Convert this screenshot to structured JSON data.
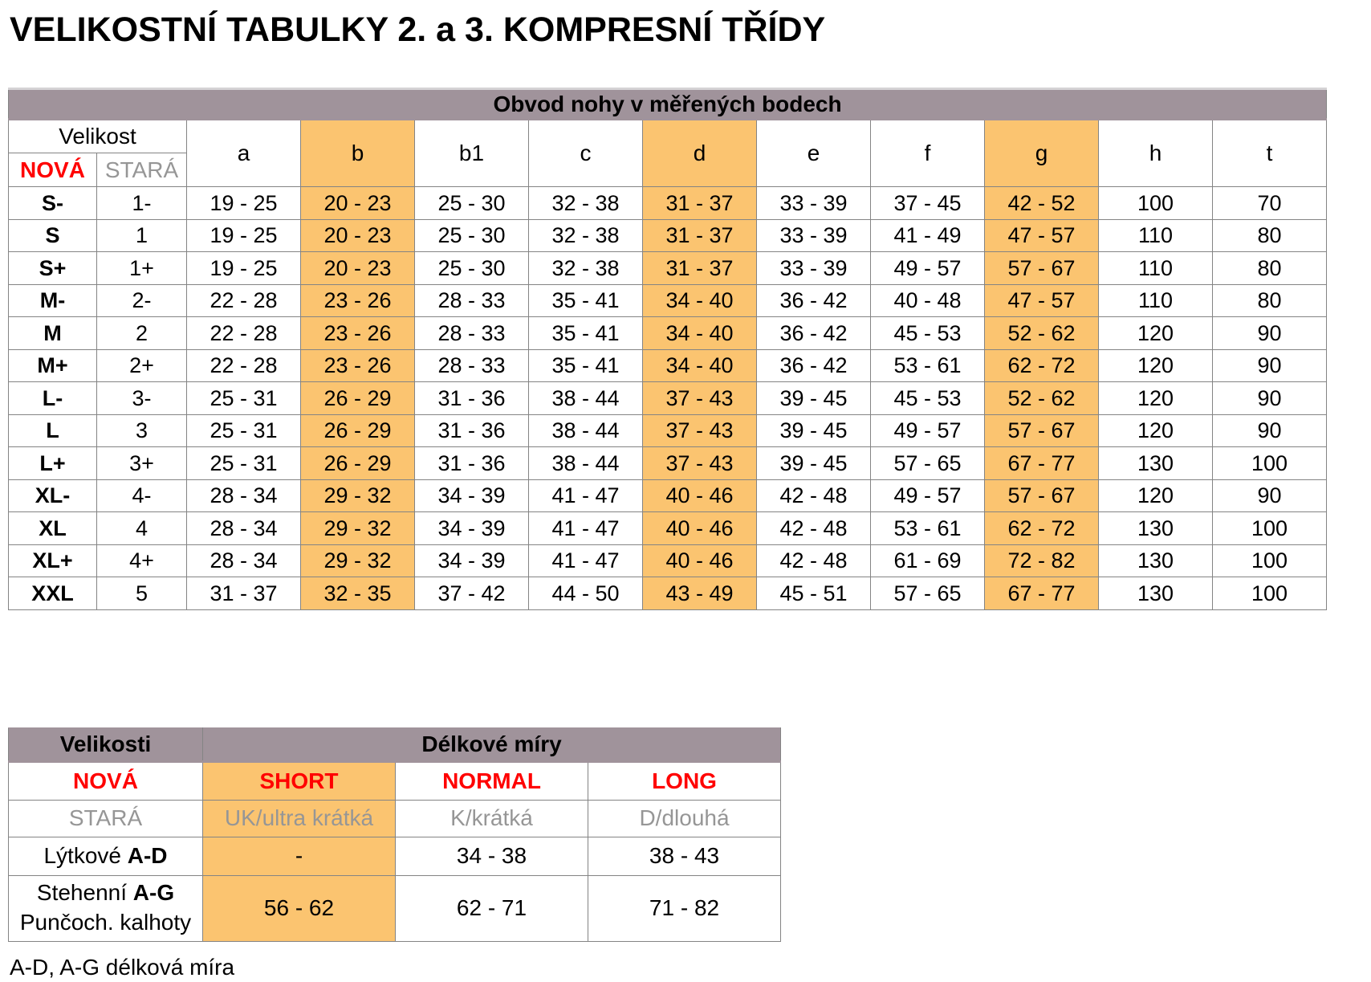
{
  "title": "VELIKOSTNÍ TABULKY 2. a 3. KOMPRESNÍ TŘÍDY",
  "colors": {
    "header_band": "#A0939B",
    "highlight_orange": "#FBC470",
    "accent_red": "#FF0000",
    "muted_gray_text": "#969696",
    "grid_border": "#848484"
  },
  "main_table": {
    "band_title": "Obvod nohy v měřených bodech",
    "size_header": "Velikost",
    "new_label": "NOVÁ",
    "old_label": "STARÁ",
    "columns": [
      "a",
      "b",
      "b1",
      "c",
      "d",
      "e",
      "f",
      "g",
      "h",
      "t"
    ],
    "highlight_columns": [
      "b",
      "d",
      "g"
    ],
    "rows": [
      {
        "new": "S-",
        "old": "1-",
        "values": [
          "19 - 25",
          "20 - 23",
          "25 - 30",
          "32 - 38",
          "31 - 37",
          "33 - 39",
          "37 - 45",
          "42 - 52",
          "100",
          "70"
        ]
      },
      {
        "new": "S",
        "old": "1",
        "values": [
          "19 - 25",
          "20 - 23",
          "25 - 30",
          "32 - 38",
          "31 - 37",
          "33 - 39",
          "41 - 49",
          "47 - 57",
          "110",
          "80"
        ]
      },
      {
        "new": "S+",
        "old": "1+",
        "values": [
          "19 - 25",
          "20 - 23",
          "25 - 30",
          "32 - 38",
          "31 - 37",
          "33 - 39",
          "49 - 57",
          "57 - 67",
          "110",
          "80"
        ]
      },
      {
        "new": "M-",
        "old": "2-",
        "values": [
          "22 - 28",
          "23 - 26",
          "28 - 33",
          "35 - 41",
          "34 - 40",
          "36 - 42",
          "40 - 48",
          "47 - 57",
          "110",
          "80"
        ]
      },
      {
        "new": "M",
        "old": "2",
        "values": [
          "22 - 28",
          "23 - 26",
          "28 - 33",
          "35 - 41",
          "34 - 40",
          "36 - 42",
          "45 - 53",
          "52 - 62",
          "120",
          "90"
        ]
      },
      {
        "new": "M+",
        "old": "2+",
        "values": [
          "22 - 28",
          "23 - 26",
          "28 - 33",
          "35 - 41",
          "34 - 40",
          "36 - 42",
          "53 - 61",
          "62 - 72",
          "120",
          "90"
        ]
      },
      {
        "new": "L-",
        "old": "3-",
        "values": [
          "25 - 31",
          "26 - 29",
          "31 - 36",
          "38 - 44",
          "37 - 43",
          "39 - 45",
          "45 - 53",
          "52 - 62",
          "120",
          "90"
        ]
      },
      {
        "new": "L",
        "old": "3",
        "values": [
          "25 - 31",
          "26 - 29",
          "31 - 36",
          "38 - 44",
          "37 - 43",
          "39 - 45",
          "49 - 57",
          "57 - 67",
          "120",
          "90"
        ]
      },
      {
        "new": "L+",
        "old": "3+",
        "values": [
          "25 - 31",
          "26 - 29",
          "31 - 36",
          "38 - 44",
          "37 - 43",
          "39 - 45",
          "57 - 65",
          "67 - 77",
          "130",
          "100"
        ]
      },
      {
        "new": "XL-",
        "old": "4-",
        "values": [
          "28 - 34",
          "29 - 32",
          "34 - 39",
          "41 - 47",
          "40 - 46",
          "42 - 48",
          "49 - 57",
          "57 - 67",
          "120",
          "90"
        ]
      },
      {
        "new": "XL",
        "old": "4",
        "values": [
          "28 - 34",
          "29 - 32",
          "34 - 39",
          "41 - 47",
          "40 - 46",
          "42 - 48",
          "53 - 61",
          "62 - 72",
          "130",
          "100"
        ]
      },
      {
        "new": "XL+",
        "old": "4+",
        "values": [
          "28 - 34",
          "29 - 32",
          "34 - 39",
          "41 - 47",
          "40 - 46",
          "42 - 48",
          "61 - 69",
          "72 - 82",
          "130",
          "100"
        ]
      },
      {
        "new": "XXL",
        "old": "5",
        "values": [
          "31 - 37",
          "32 - 35",
          "37 - 42",
          "44 - 50",
          "43 - 49",
          "45 - 51",
          "57 - 65",
          "67 - 77",
          "130",
          "100"
        ]
      }
    ]
  },
  "length_table": {
    "header_left": "Velikosti",
    "header_right": "Délkové míry",
    "new_row": {
      "label": "NOVÁ",
      "values": [
        "SHORT",
        "NORMAL",
        "LONG"
      ]
    },
    "old_row": {
      "label": "STARÁ",
      "values": [
        "UK/ultra krátká",
        "K/krátká",
        "D/dlouhá"
      ]
    },
    "rows": [
      {
        "label": "Lýtkové",
        "label_bold": "A-D",
        "label_line2": "",
        "values": [
          "-",
          "34 - 38",
          "38 - 43"
        ]
      },
      {
        "label": "Stehenní",
        "label_bold": "A-G",
        "label_line2": "Punčoch. kalhoty",
        "values": [
          "56 - 62",
          "62 - 71",
          "71 - 82"
        ]
      }
    ]
  },
  "footnote": "A-D, A-G délková míra"
}
